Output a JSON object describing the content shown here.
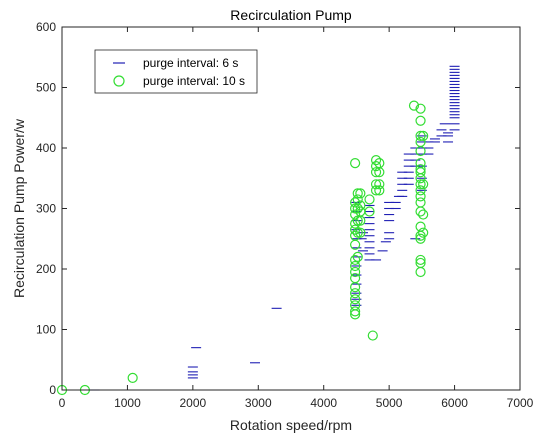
{
  "chart_data": {
    "type": "scatter",
    "title": "Recirculation Pump",
    "xlabel": "Rotation speed/rpm",
    "ylabel": "Recirculation Pump Power/w",
    "xlim": [
      0,
      7000
    ],
    "ylim": [
      0,
      600
    ],
    "xticks": [
      0,
      1000,
      2000,
      3000,
      4000,
      5000,
      6000,
      7000
    ],
    "yticks": [
      0,
      100,
      200,
      300,
      400,
      500,
      600
    ],
    "grid": false,
    "legend_position": "top-left",
    "series": [
      {
        "name": "purge interval: 6 s",
        "marker": "dash",
        "color": "#1f1fb4",
        "points": [
          [
            500,
            0
          ],
          [
            2000,
            20
          ],
          [
            2000,
            25
          ],
          [
            2000,
            30
          ],
          [
            2000,
            38
          ],
          [
            2050,
            70
          ],
          [
            2950,
            45
          ],
          [
            3280,
            135
          ],
          [
            4500,
            140
          ],
          [
            4500,
            150
          ],
          [
            4500,
            160
          ],
          [
            4500,
            175
          ],
          [
            4500,
            190
          ],
          [
            4500,
            205
          ],
          [
            4500,
            220
          ],
          [
            4500,
            235
          ],
          [
            4500,
            250
          ],
          [
            4500,
            265
          ],
          [
            4500,
            280
          ],
          [
            4500,
            295
          ],
          [
            4500,
            310
          ],
          [
            4580,
            250
          ],
          [
            4600,
            230
          ],
          [
            4600,
            260
          ],
          [
            4700,
            215
          ],
          [
            4700,
            225
          ],
          [
            4700,
            235
          ],
          [
            4700,
            245
          ],
          [
            4700,
            255
          ],
          [
            4700,
            265
          ],
          [
            4700,
            275
          ],
          [
            4700,
            285
          ],
          [
            4700,
            295
          ],
          [
            4700,
            305
          ],
          [
            4800,
            215
          ],
          [
            4900,
            230
          ],
          [
            4950,
            245
          ],
          [
            5000,
            250
          ],
          [
            5000,
            260
          ],
          [
            5000,
            280
          ],
          [
            5000,
            290
          ],
          [
            5000,
            300
          ],
          [
            5000,
            310
          ],
          [
            5100,
            300
          ],
          [
            5100,
            310
          ],
          [
            5150,
            320
          ],
          [
            5200,
            320
          ],
          [
            5200,
            330
          ],
          [
            5200,
            340
          ],
          [
            5200,
            350
          ],
          [
            5200,
            360
          ],
          [
            5300,
            340
          ],
          [
            5300,
            350
          ],
          [
            5300,
            360
          ],
          [
            5300,
            370
          ],
          [
            5300,
            380
          ],
          [
            5300,
            390
          ],
          [
            5400,
            250
          ],
          [
            5400,
            370
          ],
          [
            5400,
            380
          ],
          [
            5400,
            390
          ],
          [
            5400,
            400
          ],
          [
            5500,
            330
          ],
          [
            5500,
            350
          ],
          [
            5500,
            370
          ],
          [
            5500,
            390
          ],
          [
            5500,
            400
          ],
          [
            5500,
            410
          ],
          [
            5500,
            420
          ],
          [
            5600,
            390
          ],
          [
            5600,
            400
          ],
          [
            5600,
            410
          ],
          [
            5700,
            410
          ],
          [
            5700,
            415
          ],
          [
            5800,
            420
          ],
          [
            5800,
            430
          ],
          [
            5850,
            440
          ],
          [
            5900,
            410
          ],
          [
            5900,
            420
          ],
          [
            5900,
            425
          ],
          [
            6000,
            430
          ],
          [
            6000,
            440
          ],
          [
            6000,
            450
          ],
          [
            6000,
            455
          ],
          [
            6000,
            460
          ],
          [
            6000,
            465
          ],
          [
            6000,
            470
          ],
          [
            6000,
            475
          ],
          [
            6000,
            480
          ],
          [
            6000,
            485
          ],
          [
            6000,
            490
          ],
          [
            6000,
            495
          ],
          [
            6000,
            500
          ],
          [
            6000,
            505
          ],
          [
            6000,
            510
          ],
          [
            6000,
            515
          ],
          [
            6000,
            520
          ],
          [
            6000,
            525
          ],
          [
            6000,
            530
          ],
          [
            6000,
            535
          ]
        ]
      },
      {
        "name": "purge interval: 10 s",
        "marker": "circle",
        "color": "#33dd33",
        "points": [
          [
            0,
            0
          ],
          [
            350,
            0
          ],
          [
            1080,
            20
          ],
          [
            4480,
            125
          ],
          [
            4480,
            130
          ],
          [
            4480,
            140
          ],
          [
            4480,
            150
          ],
          [
            4480,
            160
          ],
          [
            4480,
            170
          ],
          [
            4480,
            185
          ],
          [
            4480,
            195
          ],
          [
            4480,
            205
          ],
          [
            4480,
            215
          ],
          [
            4480,
            240
          ],
          [
            4480,
            255
          ],
          [
            4480,
            265
          ],
          [
            4480,
            275
          ],
          [
            4480,
            290
          ],
          [
            4480,
            300
          ],
          [
            4480,
            310
          ],
          [
            4480,
            375
          ],
          [
            4520,
            220
          ],
          [
            4520,
            260
          ],
          [
            4520,
            280
          ],
          [
            4520,
            300
          ],
          [
            4520,
            315
          ],
          [
            4520,
            325
          ],
          [
            4560,
            260
          ],
          [
            4560,
            280
          ],
          [
            4560,
            295
          ],
          [
            4560,
            305
          ],
          [
            4560,
            325
          ],
          [
            4700,
            295
          ],
          [
            4700,
            315
          ],
          [
            4750,
            90
          ],
          [
            4800,
            330
          ],
          [
            4800,
            340
          ],
          [
            4800,
            360
          ],
          [
            4800,
            370
          ],
          [
            4800,
            380
          ],
          [
            4850,
            330
          ],
          [
            4850,
            340
          ],
          [
            4850,
            360
          ],
          [
            4850,
            375
          ],
          [
            5380,
            470
          ],
          [
            5480,
            195
          ],
          [
            5480,
            210
          ],
          [
            5480,
            215
          ],
          [
            5480,
            250
          ],
          [
            5480,
            255
          ],
          [
            5480,
            270
          ],
          [
            5480,
            295
          ],
          [
            5480,
            310
          ],
          [
            5480,
            320
          ],
          [
            5480,
            330
          ],
          [
            5480,
            340
          ],
          [
            5480,
            350
          ],
          [
            5480,
            360
          ],
          [
            5480,
            365
          ],
          [
            5480,
            375
          ],
          [
            5480,
            395
          ],
          [
            5480,
            410
          ],
          [
            5480,
            420
          ],
          [
            5480,
            445
          ],
          [
            5480,
            465
          ],
          [
            5520,
            260
          ],
          [
            5520,
            290
          ],
          [
            5520,
            340
          ],
          [
            5520,
            420
          ]
        ]
      }
    ]
  }
}
